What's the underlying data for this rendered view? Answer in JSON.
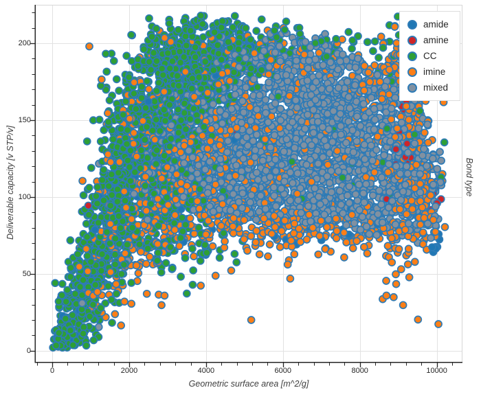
{
  "legend": {
    "items": [
      {
        "label": "amide",
        "color": "#1f77b4"
      },
      {
        "label": "amine",
        "color": "#ce2529"
      },
      {
        "label": "CC",
        "color": "#2e9f35"
      },
      {
        "label": "imine",
        "color": "#fd7f17"
      },
      {
        "label": "mixed",
        "color": "#8191a1"
      }
    ]
  },
  "chart_data": {
    "type": "scatter",
    "title": "",
    "xlabel": "Geometric surface area [m^2/g]",
    "ylabel": "Deliverable capacity [v STP/v]",
    "ylabel_right": "Bond type",
    "xlim": [
      -430,
      10650
    ],
    "ylim": [
      -7.2,
      224.6
    ],
    "x_major_ticks": [
      0,
      2000,
      4000,
      6000,
      8000,
      10000
    ],
    "y_major_ticks": [
      0,
      50,
      100,
      150,
      200
    ],
    "x_minor_step": 400,
    "y_minor_step": 10,
    "grid": true,
    "legend_position": "top-right",
    "marker": {
      "radius": 5,
      "edge_color": "#2e7bb6",
      "edge_width": 1.7
    },
    "style": {
      "grid_color": "#e2e2e2",
      "spine_dark": "#252525",
      "spine_light": "#d6d6d6",
      "background": "#ffffff"
    },
    "seed": 42,
    "series": [
      {
        "name": "amide",
        "color": "#1f77b4",
        "bounds": [
          100,
          10200,
          5,
          215
        ],
        "clusters": [
          [
            2300,
            140,
            350,
            22,
            13
          ],
          [
            2950,
            105,
            500,
            30,
            8
          ],
          [
            600,
            25,
            220,
            12,
            5
          ],
          [
            6900,
            77,
            900,
            5,
            12
          ],
          [
            9950,
            70,
            90,
            4,
            7
          ],
          [
            4600,
            170,
            800,
            25,
            6
          ],
          [
            5600,
            95,
            900,
            20,
            5
          ],
          [
            4100,
            88,
            400,
            10,
            5
          ],
          [
            1500,
            60,
            300,
            20,
            4
          ],
          [
            1850,
            128,
            150,
            10,
            3
          ]
        ]
      },
      {
        "name": "amine",
        "color": "#ce2529",
        "bounds": [
          800,
          10250,
          20,
          200
        ],
        "clusters": [
          [
            9060,
            127,
            170,
            7,
            20
          ],
          [
            10020,
            100,
            110,
            5,
            7
          ],
          [
            9100,
            161,
            120,
            6,
            3
          ],
          [
            4200,
            115,
            2600,
            25,
            9
          ],
          [
            2100,
            128,
            300,
            12,
            3
          ],
          [
            1150,
            100,
            120,
            8,
            2
          ]
        ]
      },
      {
        "name": "CC",
        "color": "#2e9f35",
        "bounds": [
          -50,
          10300,
          2,
          218
        ],
        "band": {
          "x0": 250,
          "x1": 2100,
          "y0": 8,
          "y1": 116,
          "sx": 130,
          "sy0": 13,
          "sy1": 26,
          "n": 290
        },
        "clusters": [
          [
            2100,
            135,
            380,
            26,
            150
          ],
          [
            2700,
            150,
            420,
            30,
            170
          ],
          [
            3250,
            130,
            500,
            33,
            170
          ],
          [
            3600,
            182,
            450,
            20,
            200
          ],
          [
            4300,
            200,
            600,
            10,
            120
          ],
          [
            3100,
            98,
            450,
            20,
            110
          ],
          [
            5100,
            193,
            800,
            10,
            90
          ],
          [
            6800,
            197,
            1500,
            8,
            45
          ],
          [
            5200,
            140,
            1800,
            35,
            65
          ],
          [
            3600,
            68,
            900,
            12,
            40
          ],
          [
            180,
            8,
            100,
            5,
            25
          ],
          [
            850,
            35,
            260,
            16,
            65
          ],
          [
            1300,
            75,
            300,
            26,
            85
          ],
          [
            9200,
            135,
            700,
            45,
            28
          ],
          [
            800,
            70,
            150,
            18,
            12
          ],
          [
            2750,
            196,
            250,
            10,
            45
          ],
          [
            3900,
            160,
            500,
            25,
            120
          ],
          [
            1600,
            110,
            250,
            22,
            55
          ],
          [
            1750,
            105,
            200,
            28,
            90
          ]
        ]
      },
      {
        "name": "imine",
        "color": "#fd7f17",
        "bounds": [
          500,
          10250,
          12,
          212
        ],
        "clusters": [
          [
            3500,
            118,
            850,
            30,
            240
          ],
          [
            4800,
            140,
            800,
            28,
            150
          ],
          [
            2500,
            95,
            500,
            28,
            120
          ],
          [
            1800,
            70,
            420,
            22,
            85
          ],
          [
            1200,
            42,
            300,
            15,
            40
          ],
          [
            5300,
            84,
            900,
            9,
            90
          ],
          [
            7500,
            76,
            1200,
            8,
            110
          ],
          [
            9000,
            130,
            450,
            45,
            150
          ],
          [
            8600,
            182,
            700,
            13,
            110
          ],
          [
            9600,
            98,
            280,
            14,
            90
          ],
          [
            9500,
            155,
            250,
            30,
            70
          ],
          [
            5200,
            194,
            1300,
            10,
            60
          ],
          [
            5800,
            140,
            2300,
            40,
            90
          ],
          [
            6800,
            110,
            1500,
            30,
            80
          ],
          [
            2200,
            150,
            300,
            20,
            50
          ],
          [
            3900,
            95,
            600,
            15,
            60
          ]
        ]
      },
      {
        "name": "mixed",
        "color": "#8191a1",
        "region": {
          "bounds": [
            2300,
            10150,
            66,
            207
          ],
          "top_cut": [
            58,
            0.036
          ],
          "right_cut": [
            7200,
            204,
            0.018
          ],
          "bottom": [
            5000,
            86,
            0.004,
            0.0042
          ]
        },
        "clusters": [
          [
            6300,
            145,
            1300,
            32,
            640
          ],
          [
            5300,
            120,
            900,
            26,
            340
          ],
          [
            7600,
            115,
            900,
            24,
            340
          ],
          [
            7000,
            172,
            1000,
            18,
            270
          ],
          [
            8700,
            140,
            600,
            28,
            220
          ],
          [
            4400,
            112,
            700,
            22,
            200
          ],
          [
            6500,
            90,
            1600,
            11,
            150
          ],
          [
            9400,
            105,
            400,
            18,
            120
          ],
          [
            3400,
            140,
            600,
            28,
            110
          ],
          [
            5800,
            192,
            1200,
            10,
            80
          ],
          [
            6000,
            140,
            2600,
            45,
            60
          ],
          [
            3000,
            120,
            500,
            25,
            70
          ]
        ],
        "free_clusters": [
          [
            1900,
            90,
            500,
            35,
            12
          ],
          [
            700,
            25,
            300,
            15,
            4
          ]
        ],
        "free_bounds": [
          100,
          2600,
          8,
          150
        ]
      }
    ]
  }
}
